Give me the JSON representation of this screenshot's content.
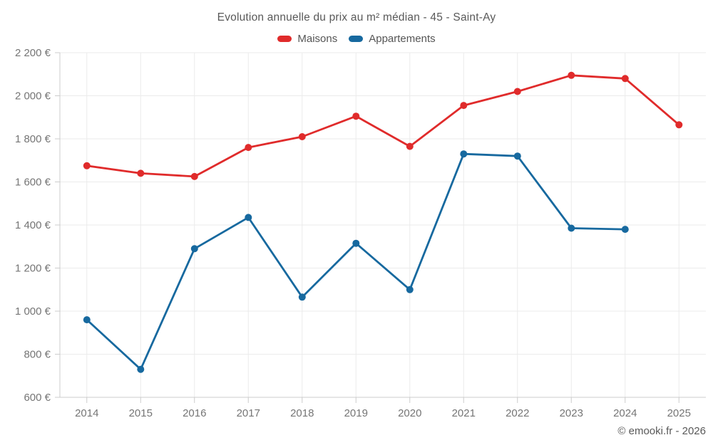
{
  "title": "Evolution annuelle du prix au m² médian - 45 - Saint-Ay",
  "copyright": "© emooki.fr - 2026",
  "legend": [
    {
      "label": "Maisons",
      "color": "#e02b2b"
    },
    {
      "label": "Appartements",
      "color": "#17699f"
    }
  ],
  "colors": {
    "maisons": "#e02b2b",
    "appartements": "#17699f",
    "grid": "#ebebeb",
    "axis": "#cccccc",
    "tick_text": "#757575"
  },
  "chart_data": {
    "type": "line",
    "title": "Evolution annuelle du prix au m² médian - 45 - Saint-Ay",
    "categories": [
      2014,
      2015,
      2016,
      2017,
      2018,
      2019,
      2020,
      2021,
      2022,
      2023,
      2024,
      2025
    ],
    "series": [
      {
        "name": "Maisons",
        "color": "#e02b2b",
        "values": [
          1675,
          1640,
          1625,
          1760,
          1810,
          1905,
          1765,
          1955,
          2020,
          2095,
          2080,
          1865
        ]
      },
      {
        "name": "Appartements",
        "color": "#17699f",
        "values": [
          960,
          730,
          1290,
          1435,
          1065,
          1315,
          1100,
          1730,
          1720,
          1385,
          1380,
          null
        ]
      }
    ],
    "xlabel": "",
    "ylabel": "",
    "ylim": [
      600,
      2200
    ],
    "ytick_step": 200,
    "ytick_suffix": " €",
    "grid": true,
    "legend_position": "top"
  }
}
